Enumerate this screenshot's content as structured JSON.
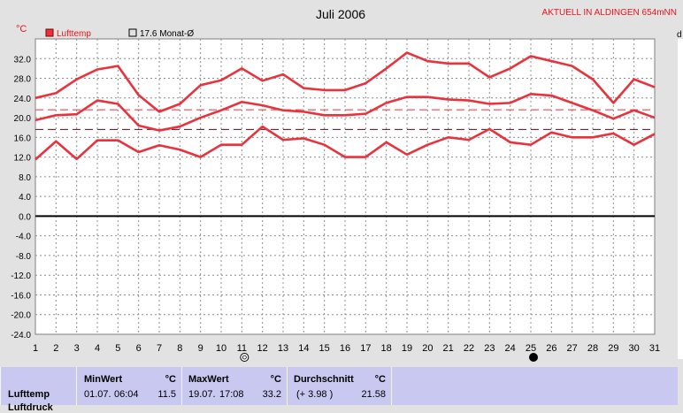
{
  "chart_data": {
    "type": "line",
    "title": "Juli 2006",
    "station": "AKTUELL IN ALDINGEN 654mNN",
    "ylabel": "°C",
    "right_label": "d",
    "ylim": [
      -24,
      36
    ],
    "yticks": [
      "32.0",
      "28.0",
      "24.0",
      "20.0",
      "16.0",
      "12.0",
      "8.0",
      "4.0",
      "0.0",
      "-4.0",
      "-8.0",
      "-12.0",
      "-16.0",
      "-20.0",
      "-24.0"
    ],
    "x": [
      1,
      2,
      3,
      4,
      5,
      6,
      7,
      8,
      9,
      10,
      11,
      12,
      13,
      14,
      15,
      16,
      17,
      18,
      19,
      20,
      21,
      22,
      23,
      24,
      25,
      26,
      27,
      28,
      29,
      30,
      31
    ],
    "grid": true,
    "legend": [
      {
        "label": "Lufttemp",
        "color": "#e8323c",
        "filled": true
      },
      {
        "label": "17.6 Monat-Ø",
        "color": "#000000",
        "filled": false
      }
    ],
    "series": [
      {
        "key": "max",
        "values": [
          24.0,
          25.0,
          27.8,
          29.8,
          30.5,
          24.6,
          21.2,
          22.8,
          26.6,
          27.6,
          30.0,
          27.5,
          28.8,
          26.0,
          25.6,
          25.6,
          27.0,
          30.0,
          33.2,
          31.5,
          31.0,
          31.0,
          28.2,
          30.0,
          32.5,
          31.5,
          30.5,
          27.8,
          23.0,
          27.8,
          26.2
        ]
      },
      {
        "key": "mean",
        "values": [
          19.5,
          20.5,
          20.7,
          23.5,
          22.8,
          18.4,
          17.4,
          18.2,
          20.0,
          21.5,
          23.2,
          22.5,
          21.5,
          21.2,
          20.5,
          20.5,
          20.8,
          23.0,
          24.2,
          24.2,
          23.7,
          23.5,
          22.8,
          23.0,
          24.8,
          24.5,
          23.0,
          21.5,
          19.8,
          21.5,
          20.0
        ]
      },
      {
        "key": "min",
        "values": [
          11.5,
          15.2,
          11.6,
          15.4,
          15.4,
          13.0,
          14.4,
          13.5,
          12.0,
          14.5,
          14.5,
          18.2,
          15.5,
          15.8,
          14.5,
          12.0,
          12.0,
          15.0,
          12.5,
          14.5,
          16.0,
          15.5,
          17.7,
          15.0,
          14.5,
          17.0,
          16.0,
          16.0,
          16.8,
          14.5,
          16.7
        ]
      }
    ],
    "reference_lines": [
      {
        "value": 21.6,
        "color": "#e8323c"
      },
      {
        "value": 17.6,
        "color": "#5a0a1e"
      }
    ],
    "moon_markers": [
      {
        "day": 11,
        "phase": "full"
      },
      {
        "day": 25,
        "phase": "new"
      }
    ]
  },
  "stats": {
    "row_label": "Lufttemp",
    "row_label_2": "Luftdruck",
    "min": {
      "header": "MinWert",
      "unit": "°C",
      "date": "01.07.",
      "time": "06:04",
      "value": "11.5"
    },
    "max": {
      "header": "MaxWert",
      "unit": "°C",
      "date": "19.07.",
      "time": "17:08",
      "value": "33.2"
    },
    "avg": {
      "header": "Durchschnitt",
      "unit": "°C",
      "diff": "(+ 3.98 )",
      "value": "21.58"
    }
  }
}
